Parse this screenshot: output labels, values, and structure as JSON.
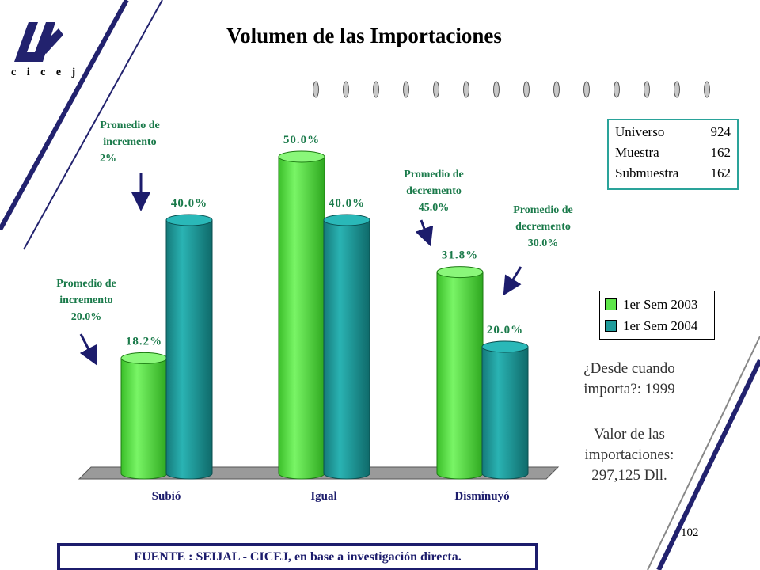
{
  "logo_text": "c i c e j",
  "title": "Volumen de las Importaciones",
  "colors": {
    "series1": "#5ee64a",
    "series2": "#1f9b9b",
    "annotation": "#1a7a4a",
    "box_border": "#2aa39a",
    "deco_line": "#22226e"
  },
  "stats": [
    {
      "label": "Universo",
      "value": "924"
    },
    {
      "label": "Muestra",
      "value": "162"
    },
    {
      "label": "Submuestra",
      "value": "162"
    }
  ],
  "annotations": {
    "subio_2003": [
      "Promedio de",
      "incremento",
      "20.0%"
    ],
    "subio_2004": [
      "Promedio de",
      "incremento",
      "2%"
    ],
    "disminuyo_2003": [
      "Promedio de",
      "decremento",
      "45.0%"
    ],
    "disminuyo_2004": [
      "Promedio de",
      "decremento",
      "30.0%"
    ]
  },
  "notes": {
    "desde": [
      "¿Desde cuando",
      "importa?: 1999"
    ],
    "valor": [
      "Valor de las",
      "importaciones:",
      "297,125 Dll."
    ]
  },
  "page_number": "102",
  "source": "FUENTE :  SEIJAL - CICEJ,  en base a investigación directa.",
  "chart_data": {
    "type": "bar",
    "categories": [
      "Subió",
      "Igual",
      "Disminuyó"
    ],
    "series": [
      {
        "name": "1er Sem 2003",
        "values": [
          18.2,
          50.0,
          31.8
        ],
        "labels": [
          "18.2%",
          "50.0%",
          "31.8%"
        ]
      },
      {
        "name": "1er Sem 2004",
        "values": [
          40.0,
          40.0,
          20.0
        ],
        "labels": [
          "40.0%",
          "40.0%",
          "20.0%"
        ]
      }
    ],
    "ylim": [
      0,
      50
    ],
    "grid": false,
    "legend": "right"
  }
}
